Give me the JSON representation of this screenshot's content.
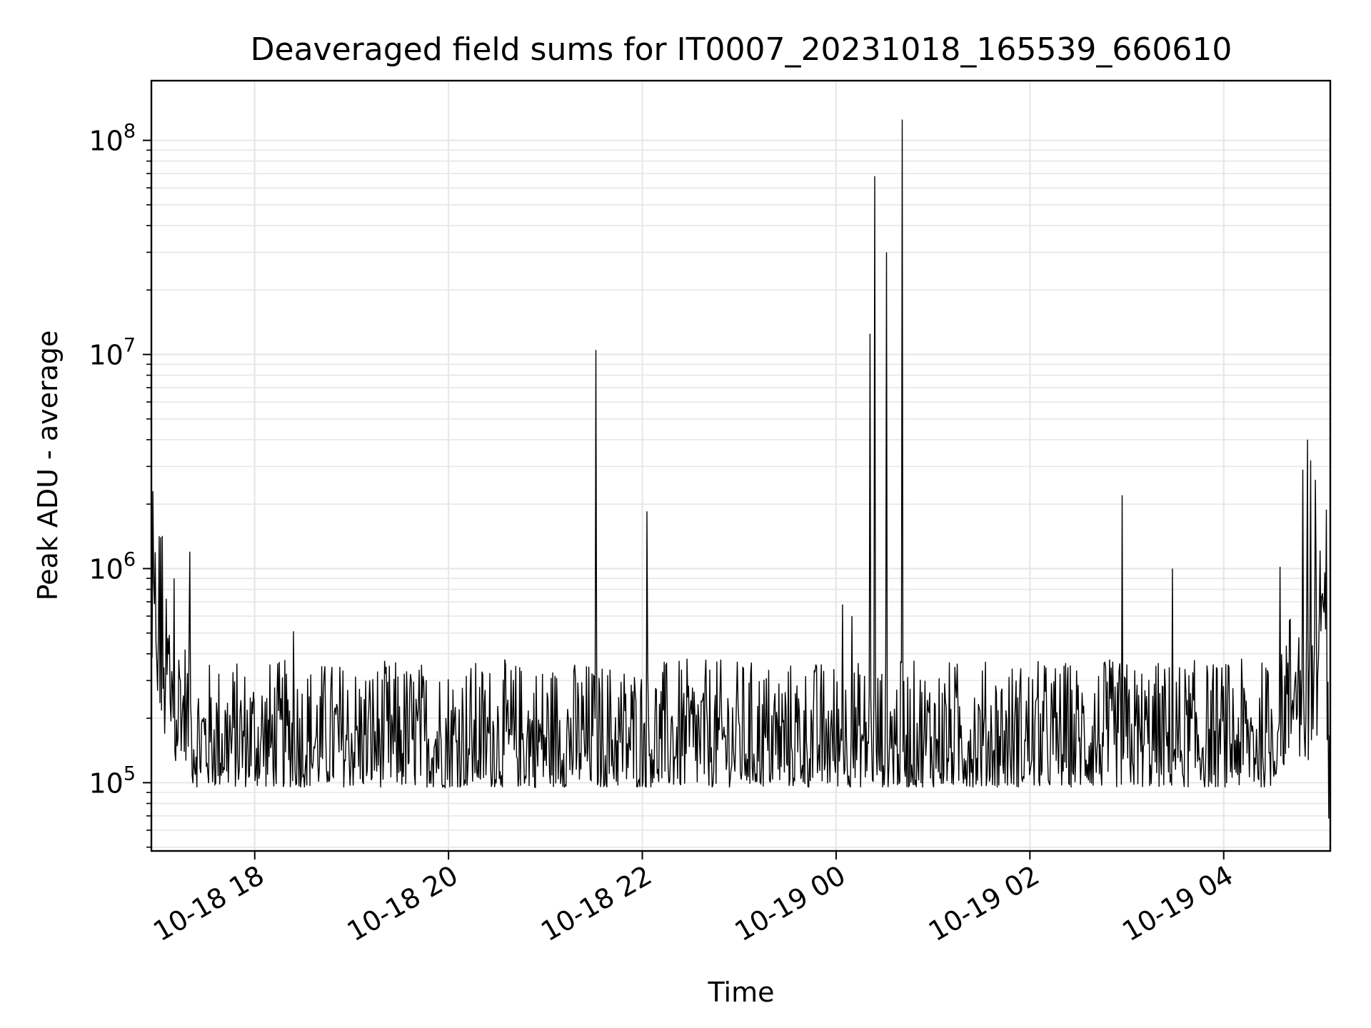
{
  "chart_data": {
    "type": "line",
    "title": "Deaveraged field sums for IT0007_20231018_165539_660610",
    "xlabel": "Time",
    "ylabel": "Peak ADU - average",
    "yscale": "log",
    "ylim": [
      48000,
      190000000
    ],
    "xlim": [
      "2023-10-18 16:56",
      "2023-10-19 05:06"
    ],
    "grid": true,
    "line_color": "#000000",
    "grid_color": "#e6e6e6",
    "x_ticks": [
      {
        "t": "2023-10-18 18:00",
        "label": "10-18 18"
      },
      {
        "t": "2023-10-18 20:00",
        "label": "10-18 20"
      },
      {
        "t": "2023-10-18 22:00",
        "label": "10-18 22"
      },
      {
        "t": "2023-10-19 00:00",
        "label": "10-19 00"
      },
      {
        "t": "2023-10-19 02:00",
        "label": "10-19 02"
      },
      {
        "t": "2023-10-19 04:00",
        "label": "10-19 04"
      }
    ],
    "y_ticks": [
      {
        "v": 100000,
        "base": "10",
        "exp": "5"
      },
      {
        "v": 1000000,
        "base": "10",
        "exp": "6"
      },
      {
        "v": 10000000,
        "base": "10",
        "exp": "7"
      },
      {
        "v": 100000000,
        "base": "10",
        "exp": "8"
      }
    ],
    "series": [
      {
        "baseline": {
          "low": 95000,
          "high": 380000
        },
        "spikes": [
          {
            "t": "2023-10-18 16:57",
            "v": 2300000
          },
          {
            "t": "2023-10-18 17:02",
            "v": 1400000
          },
          {
            "t": "2023-10-18 17:10",
            "v": 900000
          },
          {
            "t": "2023-10-18 17:20",
            "v": 1200000
          },
          {
            "t": "2023-10-18 18:24",
            "v": 510000
          },
          {
            "t": "2023-10-18 21:31",
            "v": 10500000
          },
          {
            "t": "2023-10-18 22:03",
            "v": 1850000
          },
          {
            "t": "2023-10-19 00:04",
            "v": 680000
          },
          {
            "t": "2023-10-19 00:10",
            "v": 600000
          },
          {
            "t": "2023-10-19 00:21",
            "v": 12500000
          },
          {
            "t": "2023-10-19 00:24",
            "v": 68000000
          },
          {
            "t": "2023-10-19 00:31",
            "v": 30000000
          },
          {
            "t": "2023-10-19 00:41",
            "v": 125000000
          },
          {
            "t": "2023-10-19 02:57",
            "v": 2200000
          },
          {
            "t": "2023-10-19 03:28",
            "v": 1000000
          },
          {
            "t": "2023-10-19 04:35",
            "v": 1020000
          },
          {
            "t": "2023-10-19 04:49",
            "v": 2900000
          },
          {
            "t": "2023-10-19 04:52",
            "v": 4000000
          },
          {
            "t": "2023-10-19 04:54",
            "v": 3200000
          },
          {
            "t": "2023-10-19 04:57",
            "v": 2600000
          },
          {
            "t": "2023-10-19 05:05",
            "v": 68000
          }
        ]
      }
    ]
  }
}
